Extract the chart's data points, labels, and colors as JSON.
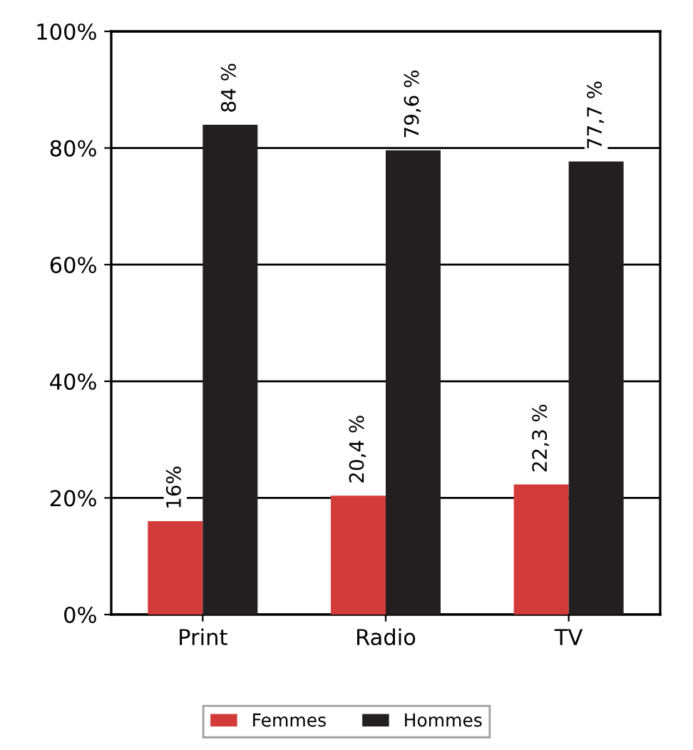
{
  "chart_data": {
    "type": "bar",
    "categories": [
      "Print",
      "Radio",
      "TV"
    ],
    "series": [
      {
        "name": "Femmes",
        "color": "#d33a3a",
        "values": [
          16,
          20.4,
          22.3
        ],
        "value_labels": [
          "16%",
          "20,4 %",
          "22,3 %"
        ]
      },
      {
        "name": "Hommes",
        "color": "#231f20",
        "values": [
          84,
          79.6,
          77.7
        ],
        "value_labels": [
          "84 %",
          "79,6 %",
          "77,7 %"
        ]
      }
    ],
    "ylim": [
      0,
      100
    ],
    "yticks": [
      {
        "value": 0,
        "label": "0%"
      },
      {
        "value": 20,
        "label": "20%"
      },
      {
        "value": 40,
        "label": "40%"
      },
      {
        "value": 60,
        "label": "60%"
      },
      {
        "value": 80,
        "label": "80%"
      },
      {
        "value": 100,
        "label": "100%"
      }
    ],
    "grid": "y",
    "legend": "bottom"
  }
}
